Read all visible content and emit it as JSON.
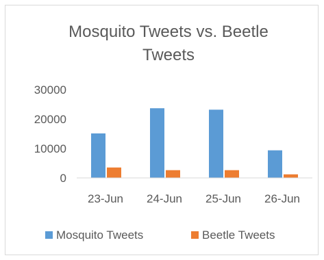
{
  "chart_data": {
    "type": "bar",
    "title": "Mosquito Tweets vs. Beetle Tweets",
    "title_lines": [
      "Mosquito Tweets vs. Beetle",
      "Tweets"
    ],
    "categories": [
      "23-Jun",
      "24-Jun",
      "25-Jun",
      "26-Jun"
    ],
    "series": [
      {
        "name": "Mosquito Tweets",
        "values": [
          15000,
          23500,
          23000,
          9300
        ],
        "color": "#5b9bd5"
      },
      {
        "name": "Beetle Tweets",
        "values": [
          3500,
          2600,
          2600,
          1200
        ],
        "color": "#ed7d31"
      }
    ],
    "ylim": [
      0,
      30000
    ],
    "yticks": [
      "0",
      "10000",
      "20000",
      "30000"
    ],
    "xlabel": "",
    "ylabel": "",
    "grid": false,
    "legend": "bottom"
  }
}
